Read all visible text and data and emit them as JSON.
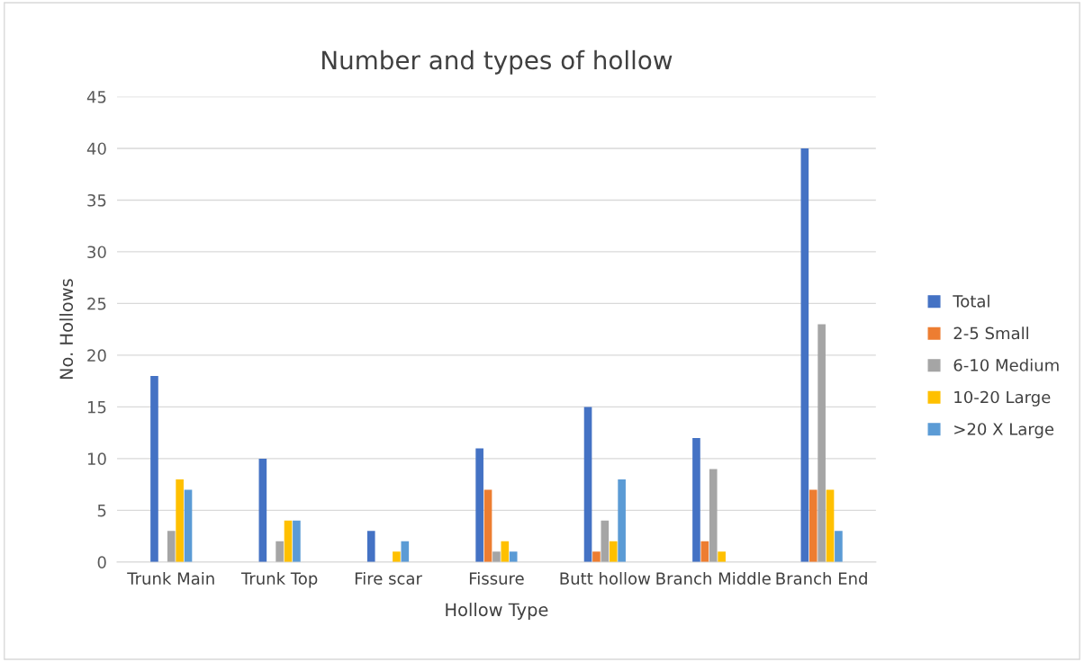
{
  "chart_data": {
    "type": "bar",
    "title": "Number and types of hollow",
    "xlabel": "Hollow Type",
    "ylabel": "No. Hollows",
    "categories": [
      "Trunk Main",
      "Trunk Top",
      "Fire scar",
      "Fissure",
      "Butt hollow",
      "Branch Middle",
      "Branch End"
    ],
    "series": [
      {
        "name": "Total",
        "color": "#4472c4",
        "values": [
          18,
          10,
          3,
          11,
          15,
          12,
          40
        ]
      },
      {
        "name": "2-5 Small",
        "color": "#ed7d31",
        "values": [
          0,
          0,
          0,
          7,
          1,
          2,
          7
        ]
      },
      {
        "name": "6-10 Medium",
        "color": "#a5a5a5",
        "values": [
          3,
          2,
          0,
          1,
          4,
          9,
          23
        ]
      },
      {
        "name": "10-20 Large",
        "color": "#ffc000",
        "values": [
          8,
          4,
          1,
          2,
          2,
          1,
          7
        ]
      },
      {
        "name": ">20 X Large",
        "color": "#5b9bd5",
        "values": [
          7,
          4,
          2,
          1,
          8,
          0,
          3
        ]
      }
    ],
    "ylim": [
      0,
      45
    ],
    "yticks": [
      0,
      5,
      10,
      15,
      20,
      25,
      30,
      35,
      40,
      45
    ],
    "grid": "y",
    "legend": "right"
  }
}
